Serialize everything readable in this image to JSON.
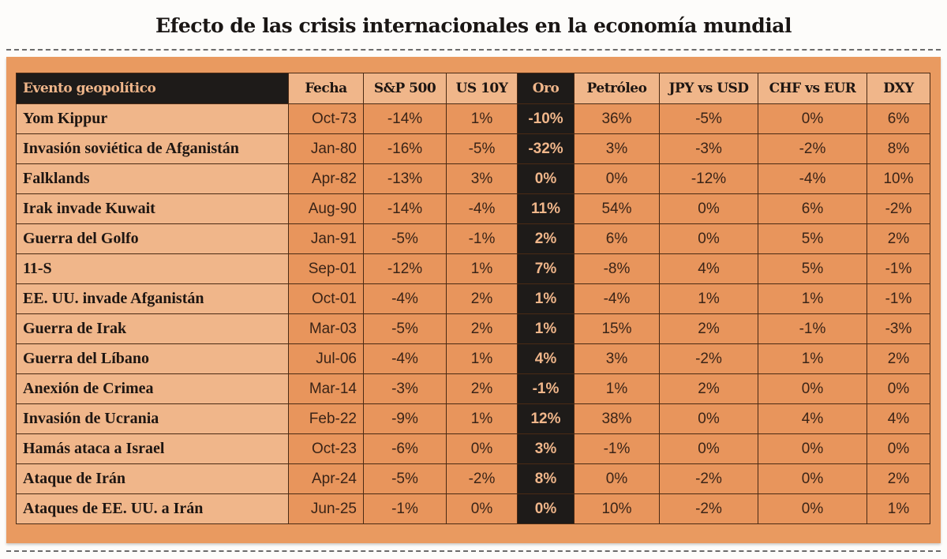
{
  "title": "Efecto de las crisis internacionales en la economía mundial",
  "colors": {
    "header_dark": "#1e1b19",
    "light_orange": "#f0b68a",
    "cell_orange": "#e8955c",
    "panel": "#e99a60"
  },
  "chart_data": {
    "type": "table",
    "title": "Efecto de las crisis internacionales en la economía mundial",
    "columns": [
      "Evento geopolítico",
      "Fecha",
      "S&P 500",
      "US 10Y",
      "Oro",
      "Petróleo",
      "JPY vs USD",
      "CHF vs EUR",
      "DXY"
    ],
    "rows": [
      [
        "Yom Kippur",
        "Oct-73",
        "-14%",
        "1%",
        "-10%",
        "36%",
        "-5%",
        "0%",
        "6%"
      ],
      [
        "Invasión soviética de Afganistán",
        "Jan-80",
        "-16%",
        "-5%",
        "-32%",
        "3%",
        "-3%",
        "-2%",
        "8%"
      ],
      [
        "Falklands",
        "Apr-82",
        "-13%",
        "3%",
        "0%",
        "0%",
        "-12%",
        "-4%",
        "10%"
      ],
      [
        "Irak invade Kuwait",
        "Aug-90",
        "-14%",
        "-4%",
        "11%",
        "54%",
        "0%",
        "6%",
        "-2%"
      ],
      [
        "Guerra del Golfo",
        "Jan-91",
        "-5%",
        "-1%",
        "2%",
        "6%",
        "0%",
        "5%",
        "2%"
      ],
      [
        "11-S",
        "Sep-01",
        "-12%",
        "1%",
        "7%",
        "-8%",
        "4%",
        "5%",
        "-1%"
      ],
      [
        "EE. UU. invade Afganistán",
        "Oct-01",
        "-4%",
        "2%",
        "1%",
        "-4%",
        "1%",
        "1%",
        "-1%"
      ],
      [
        "Guerra de Irak",
        "Mar-03",
        "-5%",
        "2%",
        "1%",
        "15%",
        "2%",
        "-1%",
        "-3%"
      ],
      [
        "Guerra del Líbano",
        "Jul-06",
        "-4%",
        "1%",
        "4%",
        "3%",
        "-2%",
        "1%",
        "2%"
      ],
      [
        "Anexión de Crimea",
        "Mar-14",
        "-3%",
        "2%",
        "-1%",
        "1%",
        "2%",
        "0%",
        "0%"
      ],
      [
        "Invasión de Ucrania",
        "Feb-22",
        "-9%",
        "1%",
        "12%",
        "38%",
        "0%",
        "4%",
        "4%"
      ],
      [
        "Hamás ataca a Israel",
        "Oct-23",
        "-6%",
        "0%",
        "3%",
        "-1%",
        "0%",
        "0%",
        "0%"
      ],
      [
        "Ataque de Irán",
        "Apr-24",
        "-5%",
        "-2%",
        "8%",
        "0%",
        "-2%",
        "0%",
        "2%"
      ],
      [
        "Ataques de EE. UU. a Irán",
        "Jun-25",
        "-1%",
        "0%",
        "0%",
        "10%",
        "-2%",
        "0%",
        "1%"
      ]
    ]
  }
}
